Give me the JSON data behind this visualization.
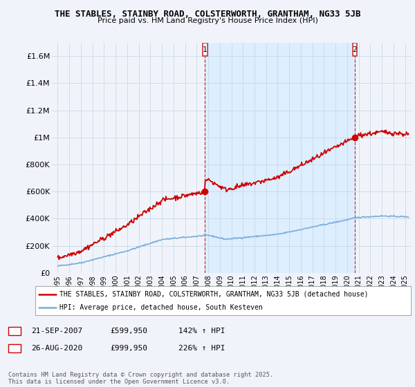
{
  "title_line1": "THE STABLES, STAINBY ROAD, COLSTERWORTH, GRANTHAM, NG33 5JB",
  "title_line2": "Price paid vs. HM Land Registry's House Price Index (HPI)",
  "ylim": [
    0,
    1700000
  ],
  "yticks": [
    0,
    200000,
    400000,
    600000,
    800000,
    1000000,
    1200000,
    1400000,
    1600000
  ],
  "ytick_labels": [
    "£0",
    "£200K",
    "£400K",
    "£600K",
    "£800K",
    "£1M",
    "£1.2M",
    "£1.4M",
    "£1.6M"
  ],
  "xlim_start": 1994.5,
  "xlim_end": 2025.5,
  "hpi_color": "#7aaddb",
  "price_color": "#cc0000",
  "shade_color": "#ddeeff",
  "marker1_date": 2007.72,
  "marker1_price": 599950,
  "marker1_label": "1",
  "marker1_text": "21-SEP-2007",
  "marker1_price_text": "£599,950",
  "marker1_hpi_text": "142% ↑ HPI",
  "marker2_date": 2020.66,
  "marker2_price": 999950,
  "marker2_label": "2",
  "marker2_text": "26-AUG-2020",
  "marker2_price_text": "£999,950",
  "marker2_hpi_text": "226% ↑ HPI",
  "legend_line1": "THE STABLES, STAINBY ROAD, COLSTERWORTH, GRANTHAM, NG33 5JB (detached house)",
  "legend_line2": "HPI: Average price, detached house, South Kesteven",
  "footer": "Contains HM Land Registry data © Crown copyright and database right 2025.\nThis data is licensed under the Open Government Licence v3.0.",
  "bg_color": "#f0f4fa"
}
